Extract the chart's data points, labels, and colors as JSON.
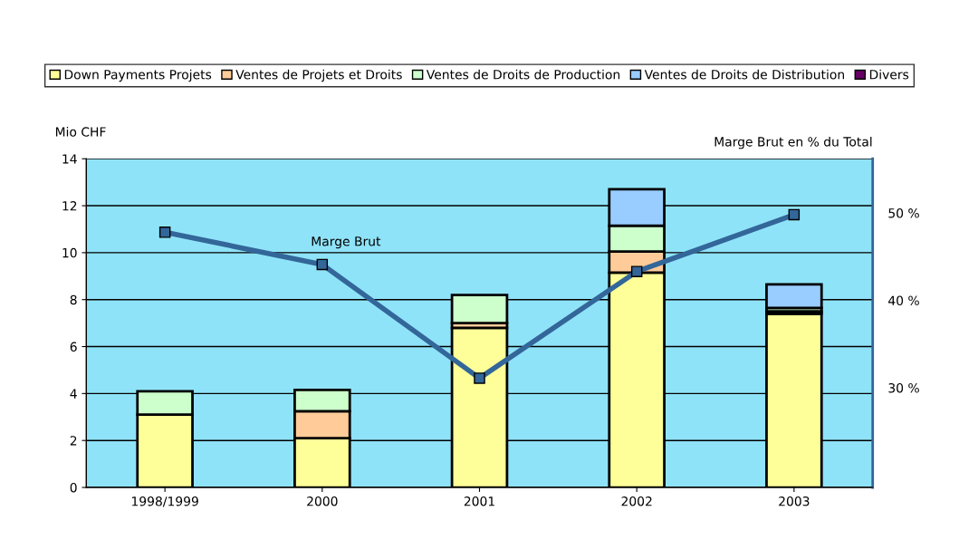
{
  "chart_data": {
    "type": "bar",
    "stacked": true,
    "categories": [
      "1998/1999",
      "2000",
      "2001",
      "2002",
      "2003"
    ],
    "ylabel": "Mio CHF",
    "y2label": "Marge Brut en % du Total",
    "ylim": [
      0,
      14
    ],
    "yticks": [
      0,
      2,
      4,
      6,
      8,
      10,
      12,
      14
    ],
    "y2lim": [
      18.6,
      56.2
    ],
    "y2ticks": [
      {
        "value": 30,
        "label": "30 %"
      },
      {
        "value": 40,
        "label": "40 %"
      },
      {
        "value": 50,
        "label": "50 %"
      }
    ],
    "grid": "y",
    "legend": "top",
    "series": [
      {
        "name": "Down Payments Projets",
        "color": "#ffff99",
        "values": [
          3.1,
          2.1,
          6.8,
          9.15,
          7.4
        ]
      },
      {
        "name": "Ventes de Projets et Droits",
        "color": "#ffcc99",
        "values": [
          null,
          1.15,
          0.2,
          0.9,
          0.1
        ]
      },
      {
        "name": "Ventes de Droits de Production",
        "color": "#ccffcc",
        "values": [
          1.0,
          0.9,
          1.2,
          1.1,
          0.15
        ]
      },
      {
        "name": "Ventes de Droits de Distribution",
        "color": "#99ccff",
        "values": [
          null,
          null,
          null,
          1.55,
          1.0
        ]
      },
      {
        "name": "Divers",
        "color": "#660066",
        "values": [
          null,
          null,
          null,
          null,
          null
        ]
      },
      {
        "type": "line",
        "axis": "y2",
        "color": "#336699",
        "marker": "square",
        "values": [
          47.8,
          44.1,
          31.1,
          43.3,
          49.8
        ]
      }
    ],
    "annotations": [
      "Marge Brut"
    ]
  }
}
